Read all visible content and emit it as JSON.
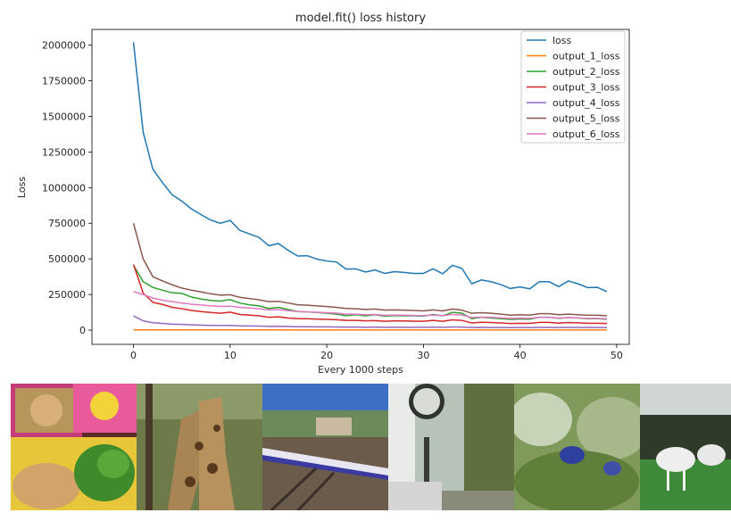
{
  "chart_data": {
    "type": "line",
    "title": "model.fit() loss history",
    "xlabel": "Every 1000 steps",
    "ylabel": "Loss",
    "xlim": [
      -4.3,
      51.3
    ],
    "ylim": [
      -100000,
      2110000
    ],
    "xticks": [
      0,
      10,
      20,
      30,
      40,
      50
    ],
    "yticks": [
      0,
      250000,
      500000,
      750000,
      1000000,
      1250000,
      1500000,
      1750000,
      2000000
    ],
    "legend_position": "top-right",
    "x": [
      0,
      1,
      2,
      3,
      4,
      5,
      6,
      7,
      8,
      9,
      10,
      11,
      12,
      13,
      14,
      15,
      16,
      17,
      18,
      19,
      20,
      21,
      22,
      23,
      24,
      25,
      26,
      27,
      28,
      29,
      30,
      31,
      32,
      33,
      34,
      35,
      36,
      37,
      38,
      39,
      40,
      41,
      42,
      43,
      44,
      45,
      46,
      47,
      48,
      49
    ],
    "series": [
      {
        "name": "loss",
        "color": "#1f77b4",
        "values": [
          2020000,
          1390000,
          1130000,
          1035000,
          950000,
          905000,
          850000,
          810000,
          772000,
          750000,
          770000,
          700000,
          675000,
          650000,
          592000,
          608000,
          560000,
          520000,
          522000,
          498000,
          485000,
          478000,
          428000,
          430000,
          408000,
          422000,
          398000,
          410000,
          405000,
          398000,
          398000,
          430000,
          395000,
          455000,
          432000,
          325000,
          352000,
          340000,
          320000,
          292000,
          303000,
          290000,
          340000,
          340000,
          305000,
          345000,
          325000,
          298000,
          300000,
          270000
        ]
      },
      {
        "name": "output_1_loss",
        "color": "#ff7f0e",
        "values": [
          2000,
          2000,
          1800,
          1700,
          1700,
          1600,
          1600,
          1500,
          1500,
          1500,
          1500,
          1400,
          1400,
          1400,
          1400,
          1400,
          1300,
          1300,
          1300,
          1300,
          1300,
          1300,
          1200,
          1200,
          1200,
          1200,
          1200,
          1200,
          1200,
          1200,
          1200,
          1200,
          1200,
          1200,
          1200,
          1100,
          1100,
          1100,
          1100,
          1100,
          1100,
          1100,
          1100,
          1100,
          1100,
          1100,
          1100,
          1100,
          1100,
          1100
        ]
      },
      {
        "name": "output_2_loss",
        "color": "#2ca02c",
        "values": [
          455000,
          340000,
          300000,
          280000,
          262000,
          258000,
          232000,
          218000,
          208000,
          204000,
          214000,
          190000,
          178000,
          170000,
          152000,
          160000,
          145000,
          130000,
          128000,
          124000,
          118000,
          112000,
          101000,
          108000,
          100000,
          108000,
          98000,
          102000,
          100000,
          100000,
          98000,
          110000,
          100000,
          125000,
          118000,
          80000,
          90000,
          85000,
          80000,
          75000,
          78000,
          76000,
          90000,
          90000,
          82000,
          88000,
          85000,
          80000,
          80000,
          76000
        ]
      },
      {
        "name": "output_3_loss",
        "color": "#d62728",
        "values": [
          460000,
          260000,
          195000,
          180000,
          160000,
          150000,
          138000,
          130000,
          124000,
          118000,
          126000,
          110000,
          105000,
          100000,
          90000,
          93000,
          85000,
          80000,
          80000,
          77000,
          75000,
          73000,
          68000,
          68000,
          65000,
          67000,
          62000,
          65000,
          64000,
          63000,
          62000,
          68000,
          62000,
          72000,
          68000,
          50000,
          55000,
          53000,
          50000,
          46000,
          48000,
          47000,
          54000,
          54000,
          49000,
          53000,
          51000,
          48000,
          48000,
          46000
        ]
      },
      {
        "name": "output_4_loss",
        "color": "#9467bd",
        "values": [
          100000,
          65000,
          52000,
          47000,
          42000,
          40000,
          37000,
          35000,
          33000,
          32000,
          33000,
          30000,
          29000,
          28000,
          26000,
          27000,
          25000,
          24000,
          24000,
          23000,
          23000,
          22000,
          21000,
          21000,
          20000,
          21000,
          20000,
          20000,
          20000,
          20000,
          20000,
          21000,
          20000,
          22000,
          21000,
          18000,
          19000,
          18500,
          18000,
          17500,
          17800,
          17500,
          19000,
          19000,
          18000,
          19000,
          18500,
          18000,
          18000,
          17500
        ]
      },
      {
        "name": "output_5_loss",
        "color": "#8c564b",
        "values": [
          750000,
          500000,
          375000,
          345000,
          318000,
          295000,
          280000,
          268000,
          255000,
          245000,
          248000,
          230000,
          222000,
          212000,
          200000,
          202000,
          190000,
          178000,
          175000,
          170000,
          165000,
          160000,
          152000,
          150000,
          145000,
          148000,
          140000,
          142000,
          140000,
          138000,
          135000,
          142000,
          135000,
          148000,
          140000,
          118000,
          122000,
          118000,
          112000,
          105000,
          108000,
          105000,
          115000,
          115000,
          108000,
          112000,
          108000,
          104000,
          104000,
          100000
        ]
      },
      {
        "name": "output_6_loss",
        "color": "#e377c2",
        "values": [
          270000,
          250000,
          225000,
          210000,
          200000,
          190000,
          182000,
          176000,
          170000,
          166000,
          168000,
          160000,
          155000,
          150000,
          142000,
          144000,
          136000,
          130000,
          128000,
          125000,
          122000,
          119000,
          112000,
          112000,
          108000,
          110000,
          104000,
          106000,
          105000,
          103000,
          102000,
          106000,
          102000,
          110000,
          106000,
          88000,
          92000,
          89000,
          86000,
          82000,
          84000,
          82000,
          90000,
          90000,
          85000,
          88000,
          86000,
          82000,
          82000,
          80000
        ]
      }
    ]
  }
}
